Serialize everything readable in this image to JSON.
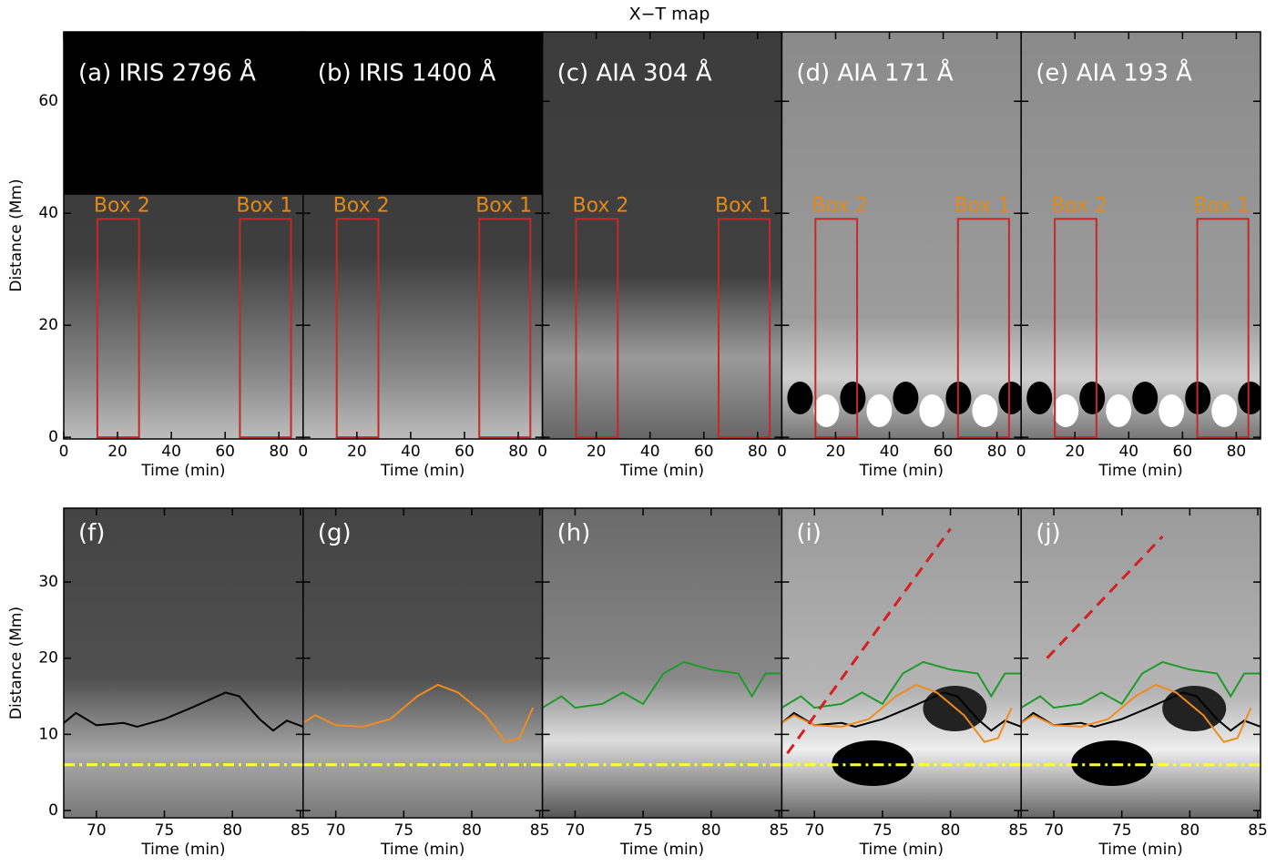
{
  "title": "X−T map",
  "chart_data": [
    {
      "type": "image",
      "label": "(a) IRIS 2796 Å",
      "xlabel": "Time (min)",
      "ylabel": "Distance (Mm)",
      "xlim": [
        0,
        89
      ],
      "ylim": [
        -0.3,
        72.4
      ],
      "xticks": [
        0,
        20,
        40,
        60,
        80
      ],
      "yticks": [
        0,
        20,
        40,
        60
      ],
      "boxes": [
        {
          "label": "Box 2",
          "xlim": [
            12.5,
            28
          ],
          "ylim": [
            0,
            39
          ],
          "color": "#c62828"
        },
        {
          "label": "Box 1",
          "xlim": [
            65.5,
            84.5
          ],
          "ylim": [
            0,
            39
          ],
          "color": "#c62828"
        }
      ]
    },
    {
      "type": "image",
      "label": "(b) IRIS 1400 Å",
      "xlabel": "Time (min)",
      "xlim": [
        0,
        89
      ],
      "ylim": [
        -0.3,
        72.4
      ],
      "xticks": [
        0,
        20,
        40,
        60,
        80
      ],
      "yticks": [
        0,
        20,
        40,
        60
      ],
      "boxes": [
        {
          "label": "Box 2",
          "xlim": [
            12.5,
            28
          ],
          "ylim": [
            0,
            39
          ],
          "color": "#c62828"
        },
        {
          "label": "Box 1",
          "xlim": [
            65.5,
            84.5
          ],
          "ylim": [
            0,
            39
          ],
          "color": "#c62828"
        }
      ]
    },
    {
      "type": "image",
      "label": "(c) AIA 304 Å",
      "xlabel": "Time (min)",
      "xlim": [
        0,
        89
      ],
      "ylim": [
        -0.3,
        72.4
      ],
      "xticks": [
        0,
        20,
        40,
        60,
        80
      ],
      "yticks": [
        0,
        20,
        40,
        60
      ],
      "boxes": [
        {
          "label": "Box 2",
          "xlim": [
            12.5,
            28
          ],
          "ylim": [
            0,
            39
          ],
          "color": "#c62828"
        },
        {
          "label": "Box 1",
          "xlim": [
            65.5,
            84.5
          ],
          "ylim": [
            0,
            39
          ],
          "color": "#c62828"
        }
      ]
    },
    {
      "type": "image",
      "label": "(d) AIA 171 Å",
      "xlabel": "Time (min)",
      "xlim": [
        0,
        89
      ],
      "ylim": [
        -0.3,
        72.4
      ],
      "xticks": [
        0,
        20,
        40,
        60,
        80
      ],
      "yticks": [
        0,
        20,
        40,
        60
      ],
      "boxes": [
        {
          "label": "Box 2",
          "xlim": [
            12.5,
            28
          ],
          "ylim": [
            0,
            39
          ],
          "color": "#c62828"
        },
        {
          "label": "Box 1",
          "xlim": [
            65.5,
            84.5
          ],
          "ylim": [
            0,
            39
          ],
          "color": "#c62828"
        }
      ]
    },
    {
      "type": "image",
      "label": "(e) AIA 193 Å",
      "xlabel": "Time (min)",
      "xlim": [
        0,
        89
      ],
      "ylim": [
        -0.3,
        72.4
      ],
      "xticks": [
        0,
        20,
        40,
        60,
        80
      ],
      "yticks": [
        0,
        20,
        40,
        60
      ],
      "boxes": [
        {
          "label": "Box 2",
          "xlim": [
            12.5,
            28
          ],
          "ylim": [
            0,
            39
          ],
          "color": "#c62828"
        },
        {
          "label": "Box 1",
          "xlim": [
            65.5,
            84.5
          ],
          "ylim": [
            0,
            39
          ],
          "color": "#c62828"
        }
      ]
    },
    {
      "type": "image",
      "label": "(f)",
      "xlabel": "Time (min)",
      "ylabel": "Distance (Mm)",
      "xlim": [
        67.6,
        85.2
      ],
      "ylim": [
        -0.96,
        39.7
      ],
      "xticks": [
        70,
        75,
        80,
        85
      ],
      "yticks": [
        0,
        10,
        20,
        30
      ],
      "hline": {
        "value": 6,
        "color": "#ffff33"
      },
      "series": [
        {
          "color": "#000000",
          "x": [
            67.6,
            68.5,
            70,
            72,
            73,
            75,
            77,
            79.5,
            80.5,
            82,
            83,
            84,
            85.2
          ],
          "values": [
            11.5,
            12.8,
            11.2,
            11.5,
            11,
            12,
            13.5,
            15.5,
            15,
            12,
            10.5,
            11.8,
            11
          ]
        }
      ]
    },
    {
      "type": "image",
      "label": "(g)",
      "xlabel": "Time (min)",
      "xlim": [
        67.6,
        85.2
      ],
      "ylim": [
        -0.96,
        39.7
      ],
      "xticks": [
        70,
        75,
        80,
        85
      ],
      "yticks": [
        0,
        10,
        20,
        30
      ],
      "hline": {
        "value": 6,
        "color": "#ffff33"
      },
      "series": [
        {
          "color": "#f08c1e",
          "x": [
            67.6,
            68.5,
            70,
            72,
            74,
            76,
            77.5,
            79,
            81,
            82.5,
            83.5,
            84.5
          ],
          "values": [
            11.5,
            12.5,
            11.2,
            11,
            12,
            15,
            16.5,
            15.5,
            12.5,
            9,
            9.5,
            13.5
          ]
        }
      ]
    },
    {
      "type": "image",
      "label": "(h)",
      "xlabel": "Time (min)",
      "xlim": [
        67.6,
        85.2
      ],
      "ylim": [
        -0.96,
        39.7
      ],
      "xticks": [
        70,
        75,
        80,
        85
      ],
      "yticks": [
        0,
        10,
        20,
        30
      ],
      "hline": {
        "value": 6,
        "color": "#ffff33"
      },
      "series": [
        {
          "color": "#1f9a2a",
          "x": [
            67.6,
            69,
            70,
            72,
            73.5,
            75,
            76.5,
            78,
            80,
            82,
            83,
            84,
            85.2
          ],
          "values": [
            13.5,
            15,
            13.5,
            14,
            15.5,
            14,
            18,
            19.5,
            18.5,
            18,
            15,
            18,
            18
          ]
        }
      ]
    },
    {
      "type": "image",
      "label": "(i)",
      "xlabel": "Time (min)",
      "xlim": [
        67.6,
        85.2
      ],
      "ylim": [
        -0.96,
        39.7
      ],
      "xticks": [
        70,
        75,
        80,
        85
      ],
      "yticks": [
        0,
        10,
        20,
        30
      ],
      "hline": {
        "value": 6,
        "color": "#ffff33"
      },
      "series": [
        {
          "color": "#000000",
          "x": [
            67.6,
            68.5,
            70,
            72,
            73,
            75,
            77,
            79.5,
            80.5,
            82,
            83,
            84,
            85.2
          ],
          "values": [
            11.5,
            12.8,
            11.2,
            11.5,
            11,
            12,
            13.5,
            15.5,
            15,
            12,
            10.5,
            11.8,
            11
          ]
        },
        {
          "color": "#f08c1e",
          "x": [
            67.6,
            68.5,
            70,
            72,
            74,
            76,
            77.5,
            79,
            81,
            82.5,
            83.5,
            84.5
          ],
          "values": [
            11.5,
            12.5,
            11.2,
            11,
            12,
            15,
            16.5,
            15.5,
            12.5,
            9,
            9.5,
            13.5
          ]
        },
        {
          "color": "#1f9a2a",
          "x": [
            67.6,
            69,
            70,
            72,
            73.5,
            75,
            76.5,
            78,
            80,
            82,
            83,
            84,
            85.2
          ],
          "values": [
            13.5,
            15,
            13.5,
            14,
            15.5,
            14,
            18,
            19.5,
            18.5,
            18,
            15,
            18,
            18
          ]
        },
        {
          "color": "#d42020",
          "dash": true,
          "x": [
            68,
            80
          ],
          "values": [
            7.5,
            37
          ]
        }
      ]
    },
    {
      "type": "image",
      "label": "(j)",
      "xlabel": "Time (min)",
      "xlim": [
        67.6,
        85.2
      ],
      "ylim": [
        -0.96,
        39.7
      ],
      "xticks": [
        70,
        75,
        80,
        85
      ],
      "yticks": [
        0,
        10,
        20,
        30
      ],
      "hline": {
        "value": 6,
        "color": "#ffff33"
      },
      "series": [
        {
          "color": "#000000",
          "x": [
            67.6,
            68.5,
            70,
            72,
            73,
            75,
            77,
            79.5,
            80.5,
            82,
            83,
            84,
            85.2
          ],
          "values": [
            11.5,
            12.8,
            11.2,
            11.5,
            11,
            12,
            13.5,
            15.5,
            15,
            12,
            10.5,
            11.8,
            11
          ]
        },
        {
          "color": "#f08c1e",
          "x": [
            67.6,
            68.5,
            70,
            72,
            74,
            76,
            77.5,
            79,
            81,
            82.5,
            83.5,
            84.5
          ],
          "values": [
            11.5,
            12.5,
            11.2,
            11,
            12,
            15,
            16.5,
            15.5,
            12.5,
            9,
            9.5,
            13.5
          ]
        },
        {
          "color": "#1f9a2a",
          "x": [
            67.6,
            69,
            70,
            72,
            73.5,
            75,
            76.5,
            78,
            80,
            82,
            83,
            84,
            85.2
          ],
          "values": [
            13.5,
            15,
            13.5,
            14,
            15.5,
            14,
            18,
            19.5,
            18.5,
            18,
            15,
            18,
            18
          ]
        },
        {
          "color": "#d42020",
          "dash": true,
          "x": [
            69.5,
            78
          ],
          "values": [
            20,
            36
          ]
        }
      ]
    }
  ]
}
